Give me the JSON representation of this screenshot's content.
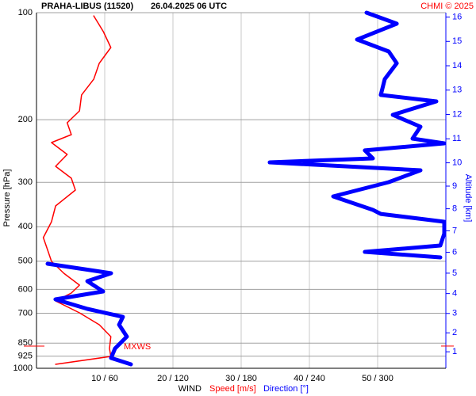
{
  "chart_data": {
    "type": "profile",
    "title": "PRAHA-LIBUS (11520)",
    "subtitle": "26.04.2025 06 UTC",
    "credit": "CHMI © 2025",
    "ylabel": "Pressure [hPa]",
    "y2label": "Altitude [km]",
    "xlabel": "WIND",
    "ylim": [
      1000,
      100
    ],
    "yscale": "log",
    "yticks": [
      100,
      200,
      300,
      400,
      500,
      600,
      700,
      850,
      925,
      1000
    ],
    "y2ticks": [
      1,
      2,
      3,
      4,
      5,
      6,
      7,
      8,
      9,
      10,
      11,
      12,
      13,
      14,
      15,
      16
    ],
    "xlim": [
      0,
      60
    ],
    "xticks": [
      {
        "value": 10,
        "label": "10 / 60"
      },
      {
        "value": 20,
        "label": "20 / 120"
      },
      {
        "value": 30,
        "label": "30 / 180"
      },
      {
        "value": 40,
        "label": "40 / 240"
      },
      {
        "value": 50,
        "label": "50 / 300"
      }
    ],
    "direction_lim": [
      0,
      360
    ],
    "grid": true,
    "max_wind": {
      "label": "MXWS",
      "pressure": 866
    },
    "series": [
      {
        "name": "Speed [m/s]",
        "color": "#ff0000",
        "width": 1.5,
        "scale": "speed",
        "pressure": [
          102.1,
          113.1,
          125.3,
          138.8,
          153.8,
          170.4,
          188.9,
          204,
          220.3,
          231.9,
          250.4,
          270.4,
          292.1,
          315.4,
          349.5,
          387.3,
          429.1,
          463.4,
          500.4,
          540.3,
          583.6,
          614.3,
          646.6,
          698.4,
          754.3,
          814.6,
          879.7,
          925.9,
          974.8
        ],
        "values": [
          8.4,
          9.8,
          10.9,
          9.2,
          8.4,
          6.6,
          6.3,
          4.5,
          5.1,
          2.2,
          4.5,
          2.8,
          5.1,
          5.7,
          2.8,
          2.2,
          1.0,
          1.6,
          2.2,
          4.0,
          6.3,
          5.1,
          2.8,
          6.3,
          9.2,
          10.9,
          10.7,
          10.9,
          2.8
        ]
      },
      {
        "name": "Direction [°]",
        "color": "#0000ff",
        "width": 5,
        "scale": "direction",
        "pressure": [
          100,
          107.4,
          119,
          128.6,
          138.8,
          153.8,
          170.4,
          177.6,
          193.8,
          209.3,
          226,
          233.1,
          244,
          256.9,
          263.6,
          277.5,
          299.7,
          328.7,
          358.5,
          368,
          387.3,
          418.3,
          451.7,
          470.6,
          487.8,
          498,
          508.2,
          540.3,
          568.9,
          608.1,
          640,
          680.8,
          716.8,
          754.3,
          814.6,
          879.7,
          935.5,
          974.8
        ],
        "values": [
          290.2,
          316.8,
          281.9,
          309.8,
          316.8,
          306.3,
          302.8,
          351.6,
          313.3,
          337.7,
          330.7,
          358.6,
          288.8,
          295.8,
          205.1,
          337.7,
          309.8,
          260.9,
          295.8,
          302.8,
          358.6,
          358.6,
          355.1,
          288.8,
          355.1,
          null,
          9.8,
          65.6,
          44.7,
          58.6,
          16.7,
          44.7,
          76.0,
          72.6,
          79.5,
          69.1,
          65.6,
          83.0
        ]
      }
    ]
  }
}
